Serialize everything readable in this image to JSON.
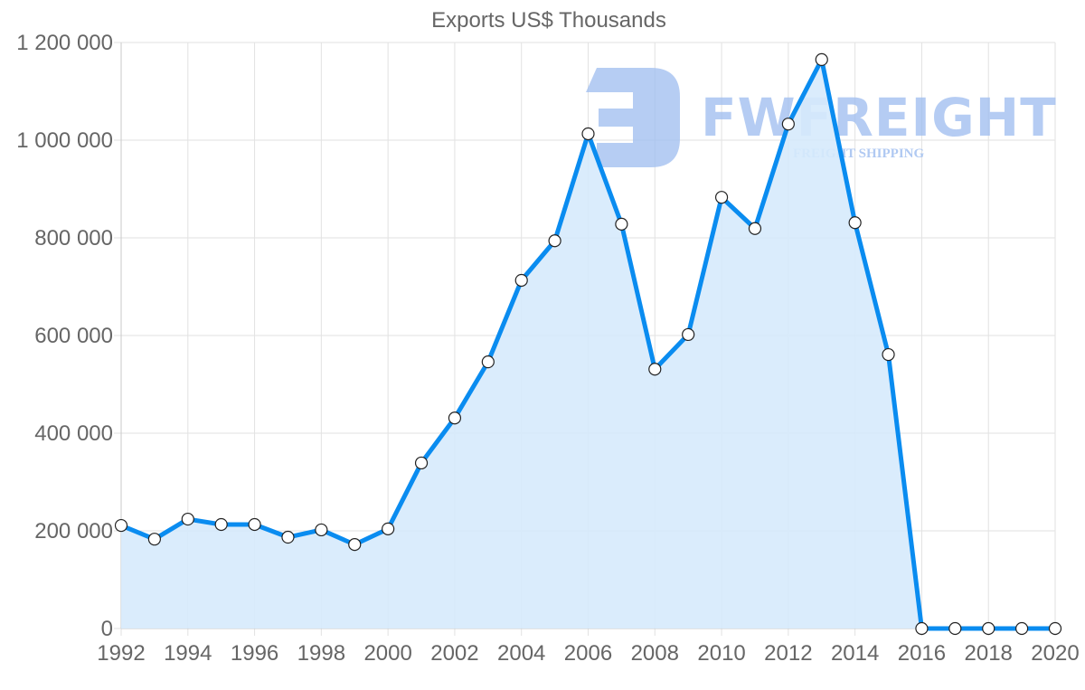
{
  "chart_data": {
    "type": "area",
    "title": "Exports US$ Thousands",
    "xlabel": "",
    "ylabel": "",
    "ylim": [
      0,
      1200000
    ],
    "xlim": [
      1992,
      2020
    ],
    "grid": true,
    "legend": null,
    "x": [
      1992,
      1993,
      1994,
      1995,
      1996,
      1997,
      1998,
      1999,
      2000,
      2001,
      2002,
      2003,
      2004,
      2005,
      2006,
      2007,
      2008,
      2009,
      2010,
      2011,
      2012,
      2013,
      2014,
      2015,
      2016,
      2017,
      2018,
      2019,
      2020
    ],
    "series": [
      {
        "name": "Exports US$ Thousands",
        "values": [
          211000,
          183000,
          224000,
          213000,
          213000,
          187000,
          202000,
          172000,
          204000,
          339000,
          431000,
          546000,
          713000,
          794000,
          1013000,
          828000,
          531000,
          602000,
          883000,
          819000,
          1033000,
          1165000,
          831000,
          561000,
          0,
          0,
          0,
          0,
          0
        ]
      }
    ],
    "y_ticks": [
      "0",
      "200 000",
      "400 000",
      "600 000",
      "800 000",
      "1 000 000",
      "1 200 000"
    ],
    "x_ticks": [
      "1992",
      "1994",
      "1996",
      "1998",
      "2000",
      "2002",
      "2004",
      "2006",
      "2008",
      "2010",
      "2012",
      "2014",
      "2016",
      "2018",
      "2020"
    ],
    "colors": {
      "line": "#0a8cf0",
      "fill": "#d6eafc",
      "grid": "#e2e2e2",
      "text": "#666666"
    }
  },
  "watermark": {
    "brand": "FWFREIGHT",
    "tagline": "FREIGHT SHIPPING"
  }
}
